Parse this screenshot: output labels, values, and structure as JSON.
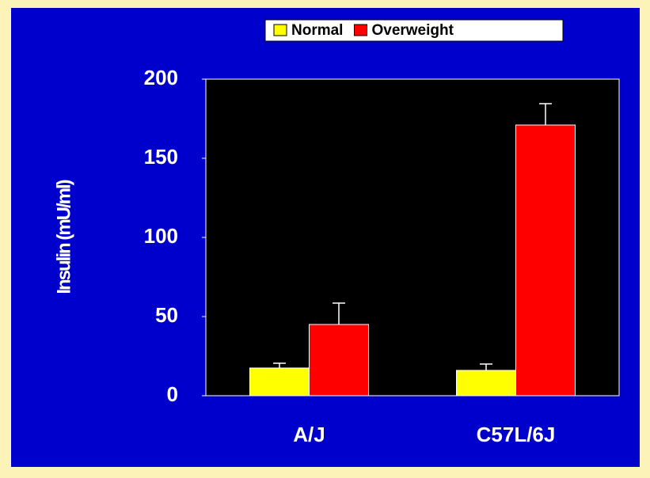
{
  "chart_data": {
    "type": "bar",
    "y_label": "Insulin (mU/ml)",
    "categories": [
      "A/J",
      "C57L/6J"
    ],
    "series": [
      {
        "name": "Normal",
        "color": "#ffff00",
        "values": [
          17.5,
          16
        ],
        "errors": [
          3,
          4
        ]
      },
      {
        "name": "Overweight",
        "color": "#ff0000",
        "values": [
          45,
          171
        ],
        "errors": [
          13.5,
          13.5
        ]
      }
    ],
    "ylim": [
      0,
      200
    ],
    "yticks": [
      0,
      50,
      100,
      150,
      200
    ],
    "legend": "top"
  }
}
